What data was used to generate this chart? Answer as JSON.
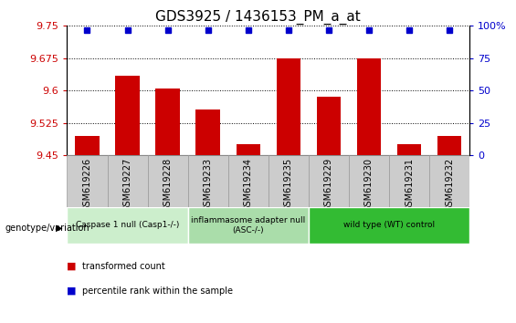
{
  "title": "GDS3925 / 1436153_PM_a_at",
  "samples": [
    "GSM619226",
    "GSM619227",
    "GSM619228",
    "GSM619233",
    "GSM619234",
    "GSM619235",
    "GSM619229",
    "GSM619230",
    "GSM619231",
    "GSM619232"
  ],
  "bar_values": [
    9.495,
    9.635,
    9.605,
    9.555,
    9.475,
    9.675,
    9.585,
    9.675,
    9.475,
    9.495
  ],
  "percentile_value": 97,
  "ylim": [
    9.45,
    9.75
  ],
  "yticks": [
    9.45,
    9.525,
    9.6,
    9.675,
    9.75
  ],
  "right_yticks": [
    0,
    25,
    50,
    75,
    100
  ],
  "right_ylim": [
    0,
    100
  ],
  "bar_color": "#cc0000",
  "dot_color": "#0000cc",
  "groups": [
    {
      "label": "Caspase 1 null (Casp1-/-)",
      "start": 0,
      "end": 3,
      "color": "#cceecc"
    },
    {
      "label": "inflammasome adapter null\n(ASC-/-)",
      "start": 3,
      "end": 6,
      "color": "#aaddaa"
    },
    {
      "label": "wild type (WT) control",
      "start": 6,
      "end": 10,
      "color": "#33bb33"
    }
  ],
  "legend_bar_label": "transformed count",
  "legend_dot_label": "percentile rank within the sample",
  "xlabel_label": "genotype/variation",
  "background_color": "#ffffff",
  "tick_label_color_left": "#cc0000",
  "tick_label_color_right": "#0000cc",
  "title_fontsize": 11,
  "bar_width": 0.6,
  "xtick_bg_color": "#cccccc",
  "xtick_border_color": "#999999"
}
